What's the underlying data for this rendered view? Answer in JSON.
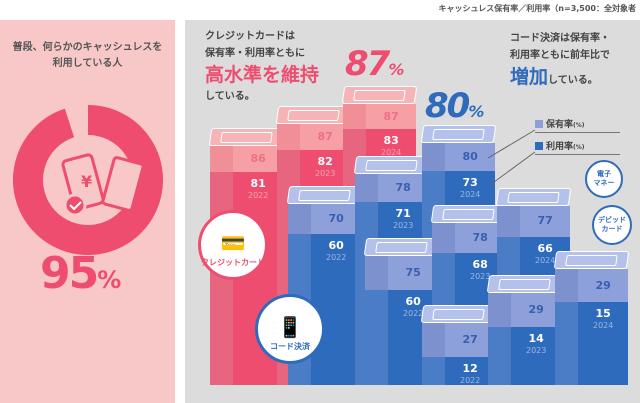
{
  "caption": "キャッシュレス保有率／利用率（n=3,500：全対象者",
  "left": {
    "title_line1": "普段、何らかのキャッシュレスを",
    "title_line2": "利用している人",
    "value": "95",
    "unit": "%",
    "fraction": 0.95,
    "icon": "phone-yen-card-check-icon"
  },
  "credit_text": {
    "line1": "クレジットカードは",
    "line2": "保有率・利用率ともに",
    "highlight": "高水準を維持",
    "line3": "している。",
    "big_value": "87",
    "unit": "%"
  },
  "code_text": {
    "line1": "コード決済は保有率・",
    "line2": "利用率ともに前年比で",
    "highlight": "増加",
    "line3": "している。",
    "big_value": "80",
    "unit": "%"
  },
  "legend": {
    "holding": "保有率",
    "usage": "利用率",
    "unit": "(%)"
  },
  "bubbles": {
    "credit": "クレジットカード",
    "code": "コード決済",
    "emoney_1": "電子",
    "emoney_2": "マネー",
    "debit_1": "デビッド",
    "debit_2": "カード"
  },
  "colors": {
    "credit": "#ef4d6f",
    "code": "#2f6bbd",
    "left_bg": "#f8c8c9",
    "panel_bg": "#dcdcdc"
  },
  "chart_data": {
    "type": "bar",
    "categories": [
      "2022",
      "2023",
      "2024"
    ],
    "groups": [
      {
        "name": "クレジットカード",
        "holding": [
          86,
          87,
          87
        ],
        "usage": [
          81,
          82,
          83
        ]
      },
      {
        "name": "コード決済",
        "holding": [
          70,
          78,
          80
        ],
        "usage": [
          60,
          71,
          73
        ]
      },
      {
        "name": "電子マネー",
        "holding": [
          75,
          78,
          77
        ],
        "usage": [
          60,
          68,
          66
        ]
      },
      {
        "name": "デビッドカード",
        "holding": [
          27,
          29,
          29
        ],
        "usage": [
          12,
          14,
          15
        ]
      }
    ]
  }
}
